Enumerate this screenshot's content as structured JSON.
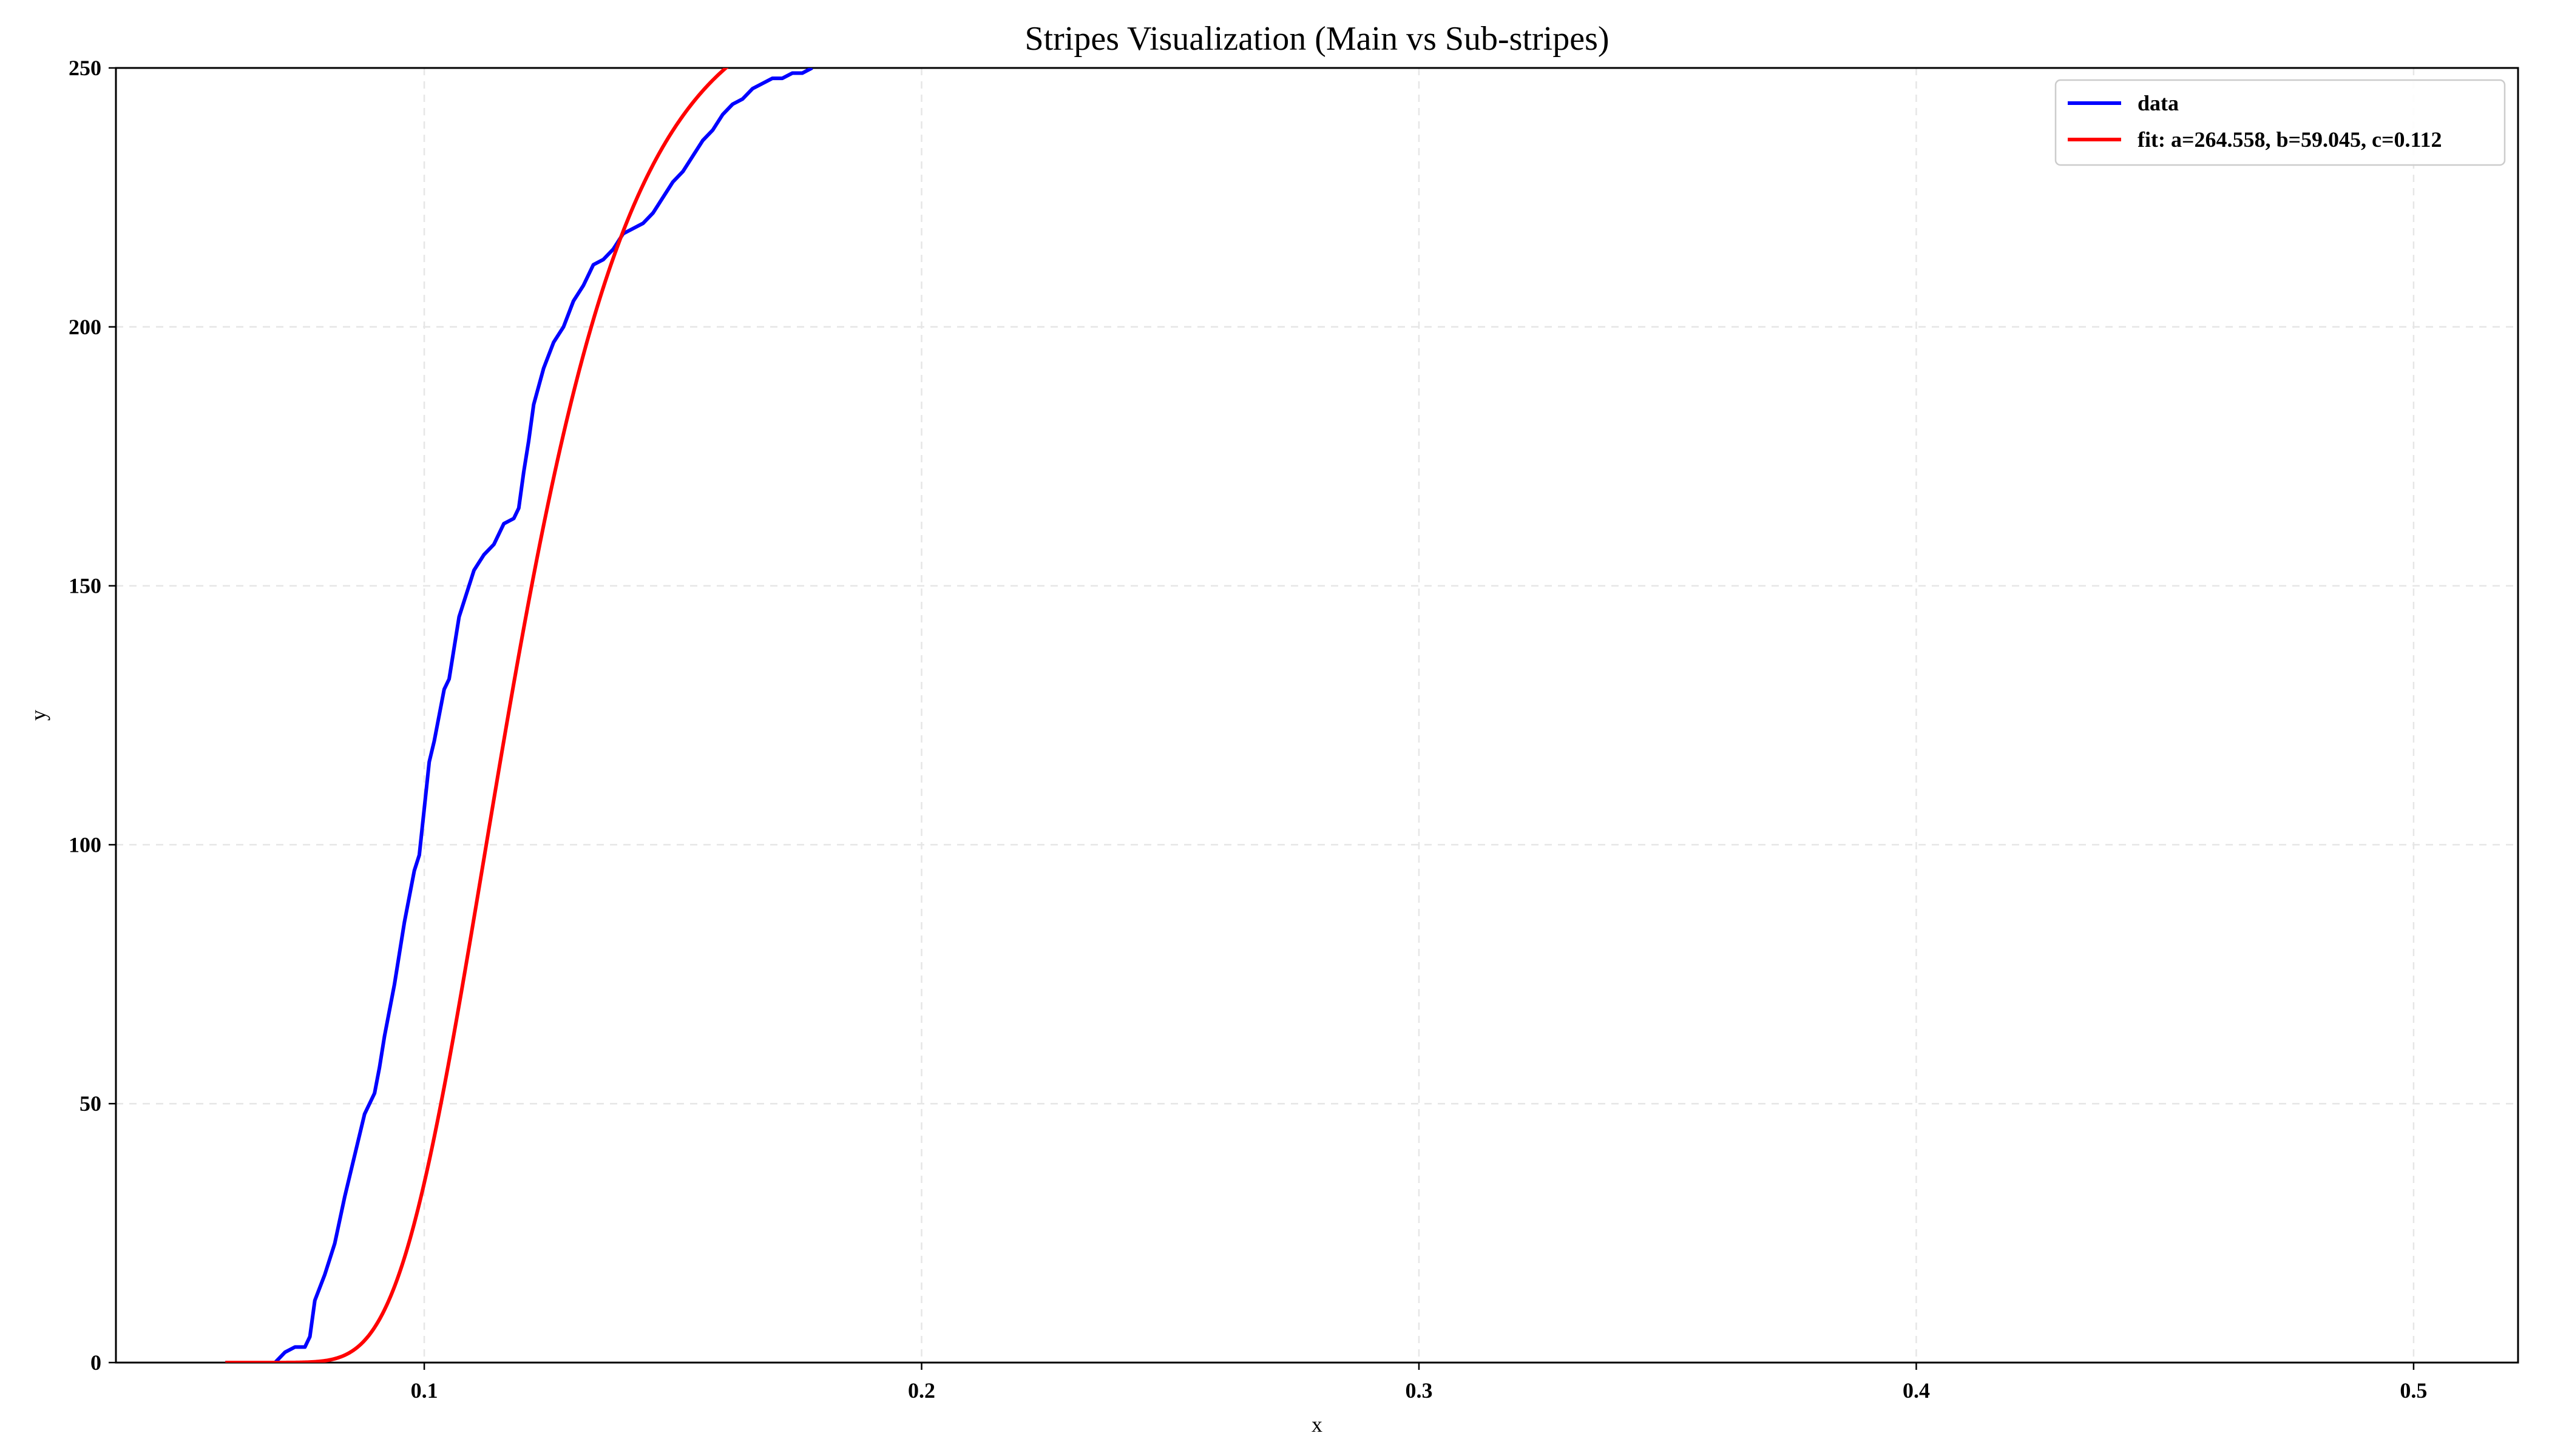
{
  "chart_data": {
    "type": "line",
    "title": "Stripes Visualization (Main vs Sub-stripes)",
    "xlabel": "x",
    "ylabel": "y",
    "xlim": [
      0.038,
      0.521
    ],
    "ylim": [
      0,
      250
    ],
    "xticks": [
      0.1,
      0.2,
      0.3,
      0.4,
      0.5
    ],
    "xtick_labels": [
      "0.1",
      "0.2",
      "0.3",
      "0.4",
      "0.5"
    ],
    "yticks": [
      0,
      50,
      100,
      150,
      200,
      250
    ],
    "ytick_labels": [
      "0",
      "50",
      "100",
      "150",
      "200",
      "250"
    ],
    "grid": true,
    "legend_position": "top-right",
    "series": [
      {
        "name": "data",
        "color": "#0000ff",
        "x": [
          0.06,
          0.065,
          0.07,
          0.072,
          0.074,
          0.076,
          0.077,
          0.078,
          0.08,
          0.082,
          0.084,
          0.086,
          0.088,
          0.09,
          0.091,
          0.092,
          0.094,
          0.096,
          0.098,
          0.099,
          0.1,
          0.101,
          0.102,
          0.104,
          0.105,
          0.106,
          0.107,
          0.108,
          0.11,
          0.112,
          0.114,
          0.116,
          0.118,
          0.119,
          0.12,
          0.121,
          0.122,
          0.124,
          0.126,
          0.128,
          0.13,
          0.132,
          0.134,
          0.136,
          0.138,
          0.14,
          0.142,
          0.144,
          0.146,
          0.148,
          0.15,
          0.152,
          0.154,
          0.156,
          0.158,
          0.16,
          0.162,
          0.164,
          0.166,
          0.168,
          0.17,
          0.172,
          0.174,
          0.176,
          0.178
        ],
        "y": [
          0,
          0,
          0,
          2,
          3,
          3,
          5,
          12,
          17,
          23,
          32,
          40,
          48,
          52,
          57,
          63,
          73,
          85,
          95,
          98,
          107,
          116,
          120,
          130,
          132,
          138,
          144,
          147,
          153,
          156,
          158,
          162,
          163,
          165,
          172,
          178,
          185,
          192,
          197,
          200,
          205,
          208,
          212,
          213,
          215,
          218,
          219,
          220,
          222,
          225,
          228,
          230,
          233,
          236,
          238,
          241,
          243,
          244,
          246,
          247,
          248,
          248,
          249,
          249,
          250
        ]
      },
      {
        "name": "fit: a=264.558, b=59.045, c=0.112",
        "color": "#ff0000",
        "function": "gompertz",
        "params": {
          "a": 264.558,
          "b": 59.045,
          "c": 0.112
        },
        "x_start": 0.06,
        "x_end": 0.17
      }
    ]
  }
}
